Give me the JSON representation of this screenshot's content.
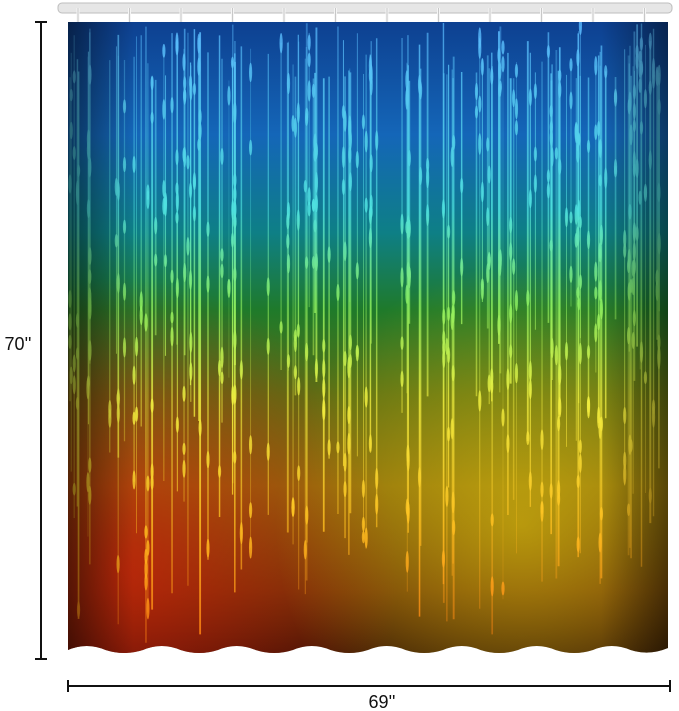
{
  "dimensions": {
    "height": "70''",
    "width": "69''"
  }
}
